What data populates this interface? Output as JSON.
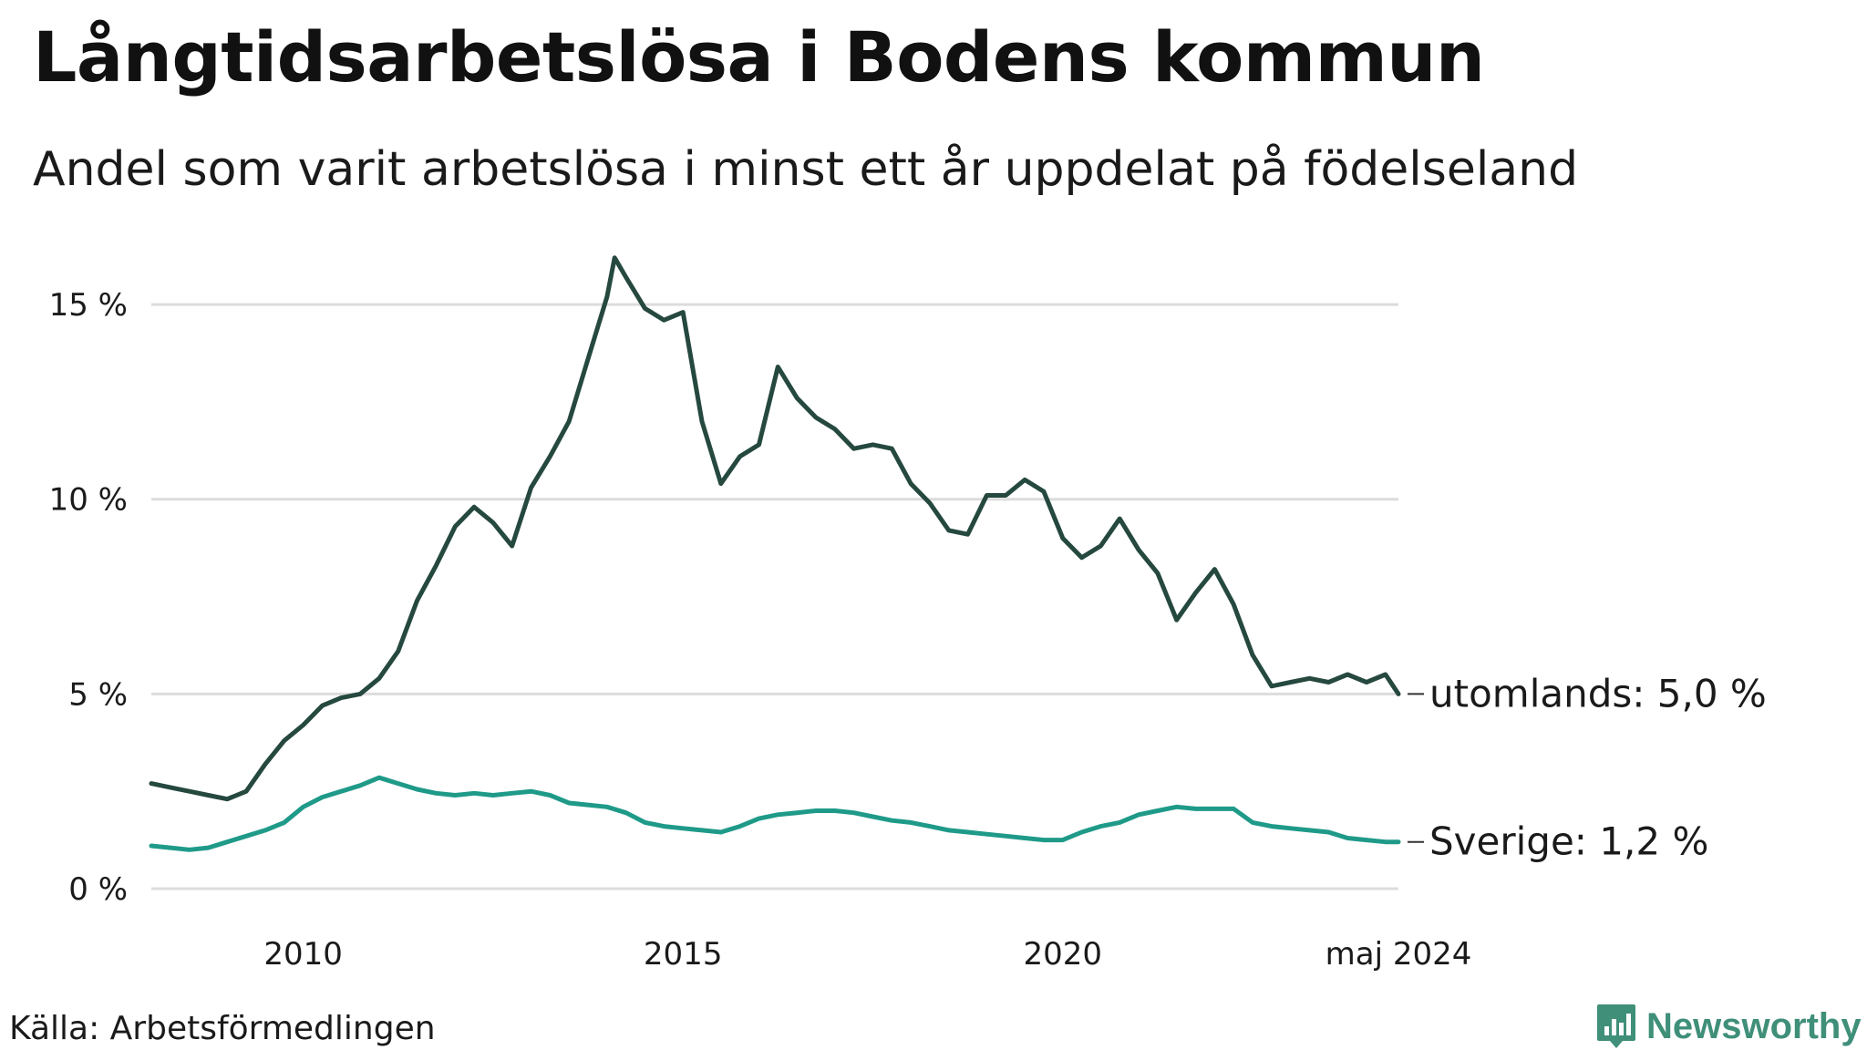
{
  "title": "Långtidsarbetslösa i Bodens kommun",
  "subtitle": "Andel som varit arbetslösa i minst ett år uppdelat på födelseland",
  "source": "Källa: Arbetsförmedlingen",
  "brand": "Newsworthy",
  "colors": {
    "abroad": "#25483f",
    "sweden": "#1f9a89",
    "grid": "#dcdcdc",
    "brand": "#3f8f79"
  },
  "chart_data": {
    "type": "line",
    "title": "Långtidsarbetslösa i Bodens kommun",
    "ylabel": "",
    "xlabel": "",
    "ylim": [
      0,
      16.5
    ],
    "xlim": [
      2008.0,
      2024.42
    ],
    "y_ticks": [
      0,
      5,
      10,
      15
    ],
    "y_tick_labels": [
      "0 %",
      "5 %",
      "10 %",
      "15 %"
    ],
    "x_ticks": [
      2010,
      2015,
      2020,
      2024.42
    ],
    "x_tick_labels": [
      "2010",
      "2015",
      "2020",
      "maj 2024"
    ],
    "grid": true,
    "series": [
      {
        "name": "utomlands",
        "end_label": "utomlands: 5,0 %",
        "x": [
          2008.0,
          2008.25,
          2008.5,
          2008.75,
          2009.0,
          2009.25,
          2009.5,
          2009.75,
          2010.0,
          2010.25,
          2010.5,
          2010.75,
          2011.0,
          2011.25,
          2011.5,
          2011.75,
          2012.0,
          2012.25,
          2012.5,
          2012.75,
          2013.0,
          2013.25,
          2013.5,
          2013.75,
          2014.0,
          2014.1,
          2014.25,
          2014.5,
          2014.75,
          2015.0,
          2015.25,
          2015.5,
          2015.75,
          2016.0,
          2016.25,
          2016.5,
          2016.75,
          2017.0,
          2017.25,
          2017.5,
          2017.75,
          2018.0,
          2018.25,
          2018.5,
          2018.75,
          2019.0,
          2019.25,
          2019.5,
          2019.75,
          2020.0,
          2020.25,
          2020.5,
          2020.75,
          2021.0,
          2021.25,
          2021.5,
          2021.75,
          2022.0,
          2022.25,
          2022.5,
          2022.75,
          2023.0,
          2023.25,
          2023.5,
          2023.75,
          2024.0,
          2024.25,
          2024.42
        ],
        "values": [
          2.7,
          2.6,
          2.5,
          2.4,
          2.3,
          2.5,
          3.2,
          3.8,
          4.2,
          4.7,
          4.9,
          5.0,
          5.4,
          6.1,
          7.4,
          8.3,
          9.3,
          9.8,
          9.4,
          8.8,
          10.3,
          11.1,
          12.0,
          13.6,
          15.2,
          16.2,
          15.7,
          14.9,
          14.6,
          14.8,
          12.0,
          10.4,
          11.1,
          11.4,
          13.4,
          12.6,
          12.1,
          11.8,
          11.3,
          11.4,
          11.3,
          10.4,
          9.9,
          9.2,
          9.1,
          10.1,
          10.1,
          10.5,
          10.2,
          9.0,
          8.5,
          8.8,
          9.5,
          8.7,
          8.1,
          6.9,
          7.6,
          8.2,
          7.3,
          6.0,
          5.2,
          5.3,
          5.4,
          5.3,
          5.5,
          5.3,
          5.5,
          5.0
        ]
      },
      {
        "name": "Sverige",
        "end_label": "Sverige: 1,2 %",
        "x": [
          2008.0,
          2008.25,
          2008.5,
          2008.75,
          2009.0,
          2009.25,
          2009.5,
          2009.75,
          2010.0,
          2010.25,
          2010.5,
          2010.75,
          2011.0,
          2011.25,
          2011.5,
          2011.75,
          2012.0,
          2012.25,
          2012.5,
          2012.75,
          2013.0,
          2013.25,
          2013.5,
          2013.75,
          2014.0,
          2014.25,
          2014.5,
          2014.75,
          2015.0,
          2015.25,
          2015.5,
          2015.75,
          2016.0,
          2016.25,
          2016.5,
          2016.75,
          2017.0,
          2017.25,
          2017.5,
          2017.75,
          2018.0,
          2018.25,
          2018.5,
          2018.75,
          2019.0,
          2019.25,
          2019.5,
          2019.75,
          2020.0,
          2020.25,
          2020.5,
          2020.75,
          2021.0,
          2021.25,
          2021.5,
          2021.75,
          2022.0,
          2022.25,
          2022.5,
          2022.75,
          2023.0,
          2023.25,
          2023.5,
          2023.75,
          2024.0,
          2024.25,
          2024.42
        ],
        "values": [
          1.1,
          1.05,
          1.0,
          1.05,
          1.2,
          1.35,
          1.5,
          1.7,
          2.1,
          2.35,
          2.5,
          2.65,
          2.85,
          2.7,
          2.55,
          2.45,
          2.4,
          2.45,
          2.4,
          2.45,
          2.5,
          2.4,
          2.2,
          2.15,
          2.1,
          1.95,
          1.7,
          1.6,
          1.55,
          1.5,
          1.45,
          1.6,
          1.8,
          1.9,
          1.95,
          2.0,
          2.0,
          1.95,
          1.85,
          1.75,
          1.7,
          1.6,
          1.5,
          1.45,
          1.4,
          1.35,
          1.3,
          1.25,
          1.25,
          1.45,
          1.6,
          1.7,
          1.9,
          2.0,
          2.1,
          2.05,
          2.05,
          2.05,
          1.7,
          1.6,
          1.55,
          1.5,
          1.45,
          1.3,
          1.25,
          1.2,
          1.2
        ]
      }
    ]
  }
}
